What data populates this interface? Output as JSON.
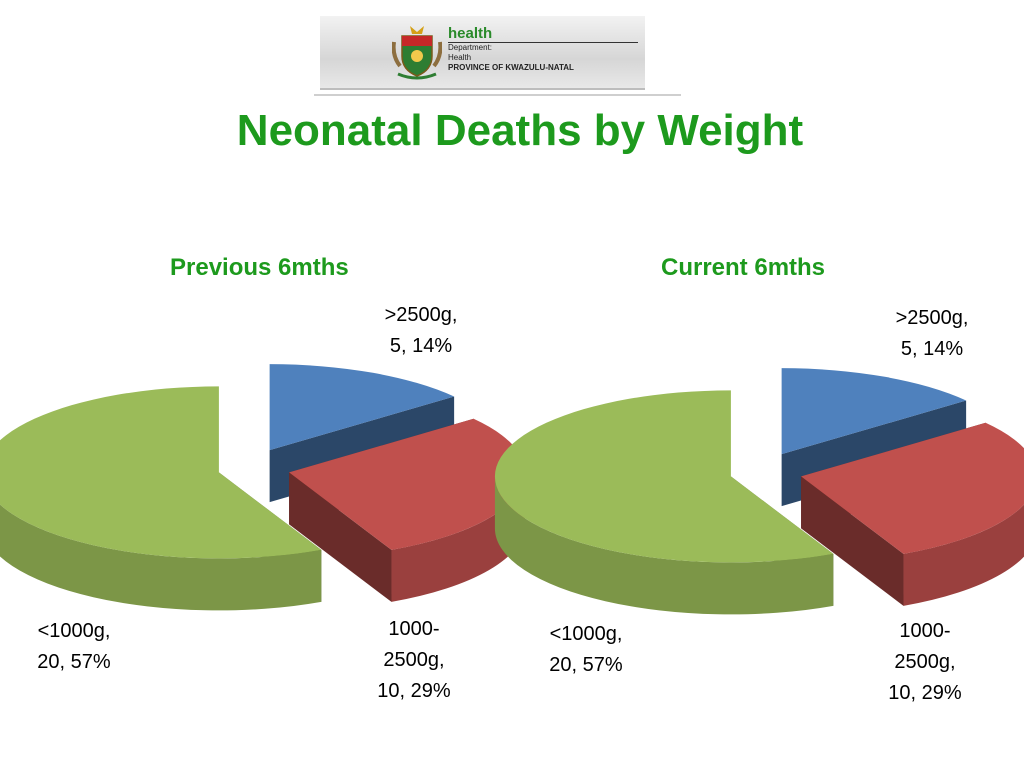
{
  "logo": {
    "health": "health",
    "line1": "Department:",
    "line2": "Health",
    "line3": "PROVINCE OF KWAZULU-NATAL"
  },
  "title": "Neonatal Deaths by Weight",
  "chart_data": [
    {
      "type": "pie",
      "title": "Previous 6mths",
      "slices": [
        {
          "label": ">2500g",
          "value": 5,
          "percent": "14%",
          "color": "#4f81bd"
        },
        {
          "label": "1000-2500g",
          "value": 10,
          "percent": "29%",
          "color": "#c0504d"
        },
        {
          "label": "<1000g",
          "value": 20,
          "percent": "57%",
          "color": "#9bbb59"
        }
      ],
      "labels": [
        {
          "l1": ">2500g,",
          "l2": "5, 14%",
          "l3": ""
        },
        {
          "l1": "1000-",
          "l2": "2500g,",
          "l3": "10, 29%"
        },
        {
          "l1": "<1000g,",
          "l2": "20, 57%",
          "l3": ""
        }
      ]
    },
    {
      "type": "pie",
      "title": "Current 6mths",
      "slices": [
        {
          "label": ">2500g",
          "value": 5,
          "percent": "14%",
          "color": "#4f81bd"
        },
        {
          "label": "1000-2500g",
          "value": 10,
          "percent": "29%",
          "color": "#c0504d"
        },
        {
          "label": "<1000g",
          "value": 20,
          "percent": "57%",
          "color": "#9bbb59"
        }
      ],
      "labels": [
        {
          "l1": ">2500g,",
          "l2": "5, 14%",
          "l3": ""
        },
        {
          "l1": "1000-",
          "l2": "2500g,",
          "l3": "10, 29%"
        },
        {
          "l1": "<1000g,",
          "l2": "20, 57%",
          "l3": ""
        }
      ]
    }
  ]
}
